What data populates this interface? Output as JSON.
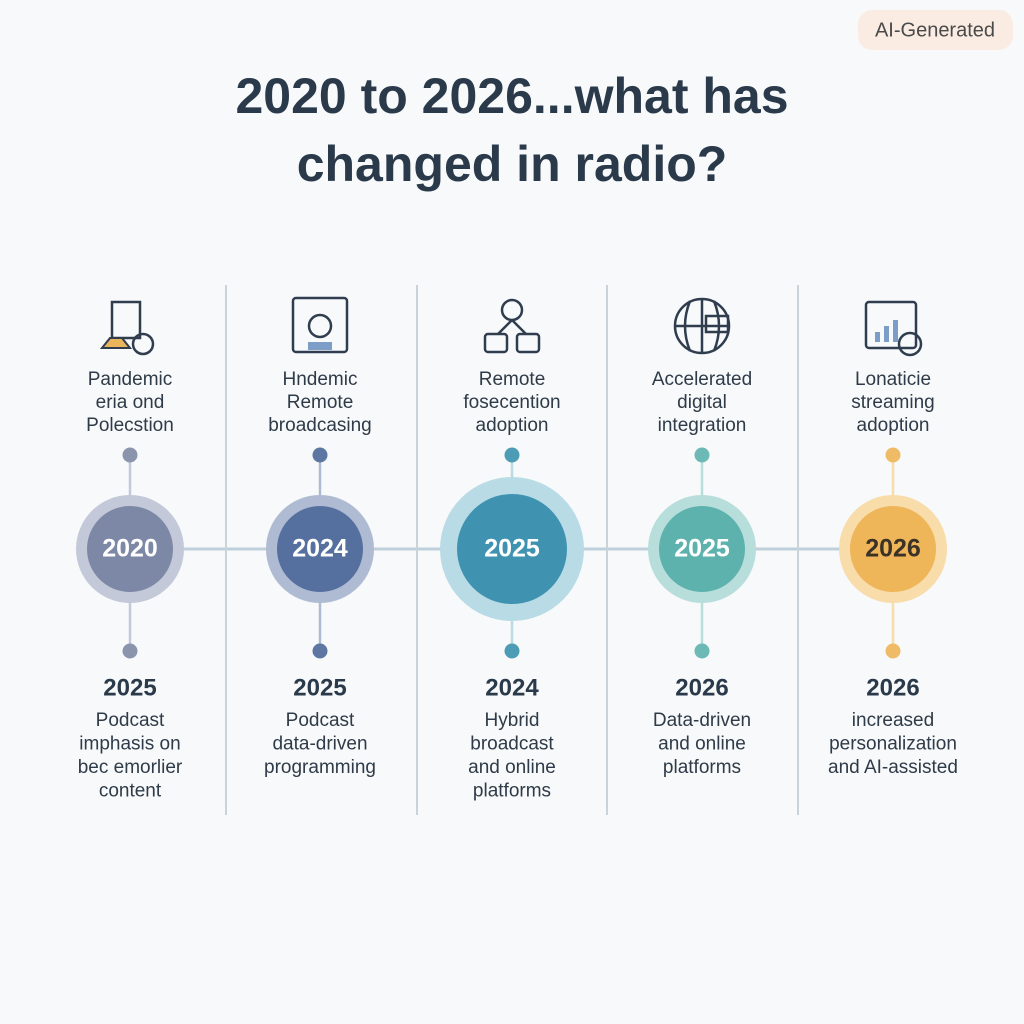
{
  "badge": "AI-Generated",
  "title": [
    "2020 to 2026...what has",
    "changed in radio?"
  ],
  "columns": [
    {
      "top": [
        "Pandemic",
        "eria ond",
        "Polecstion"
      ],
      "year": "2020",
      "bottom_year": "2025",
      "bottom": [
        "Podcast",
        "imphasis on",
        "bec emorlier",
        "content"
      ],
      "color": "#7d88a6",
      "ring": "#c3c9d8",
      "dot": "#8a94ad",
      "year_color": "#ffffff"
    },
    {
      "top": [
        "Hndemic",
        "Remote",
        "broadcasing"
      ],
      "year": "2024",
      "bottom_year": "2025",
      "bottom": [
        "Podcast",
        "data-driven",
        "programming"
      ],
      "color": "#55709e",
      "ring": "#aebbd2",
      "dot": "#5d77a2",
      "year_color": "#ffffff"
    },
    {
      "top": [
        "Remote",
        "fosecention",
        "adoption"
      ],
      "year": "2025",
      "bottom_year": "2024",
      "bottom": [
        "Hybrid",
        "broadcast",
        "and online",
        "platforms"
      ],
      "color": "#3f93b0",
      "ring": "#b9dbe6",
      "dot": "#4d9cb6",
      "year_color": "#ffffff"
    },
    {
      "top": [
        "Accelerated",
        "digital",
        "integration"
      ],
      "year": "2025",
      "bottom_year": "2026",
      "bottom": [
        "Data-driven",
        "and online",
        "platforms"
      ],
      "color": "#5db2ae",
      "ring": "#b8dedb",
      "dot": "#6cb9b5",
      "year_color": "#ffffff"
    },
    {
      "top": [
        "Lonaticie",
        "streaming",
        "adoption"
      ],
      "year": "2026",
      "bottom_year": "2026",
      "bottom": [
        "increased",
        "personalization",
        "and AI-assisted"
      ],
      "color": "#efb559",
      "ring": "#f8dcaa",
      "dot": "#f0bb66",
      "year_color": "#3a3226"
    }
  ]
}
